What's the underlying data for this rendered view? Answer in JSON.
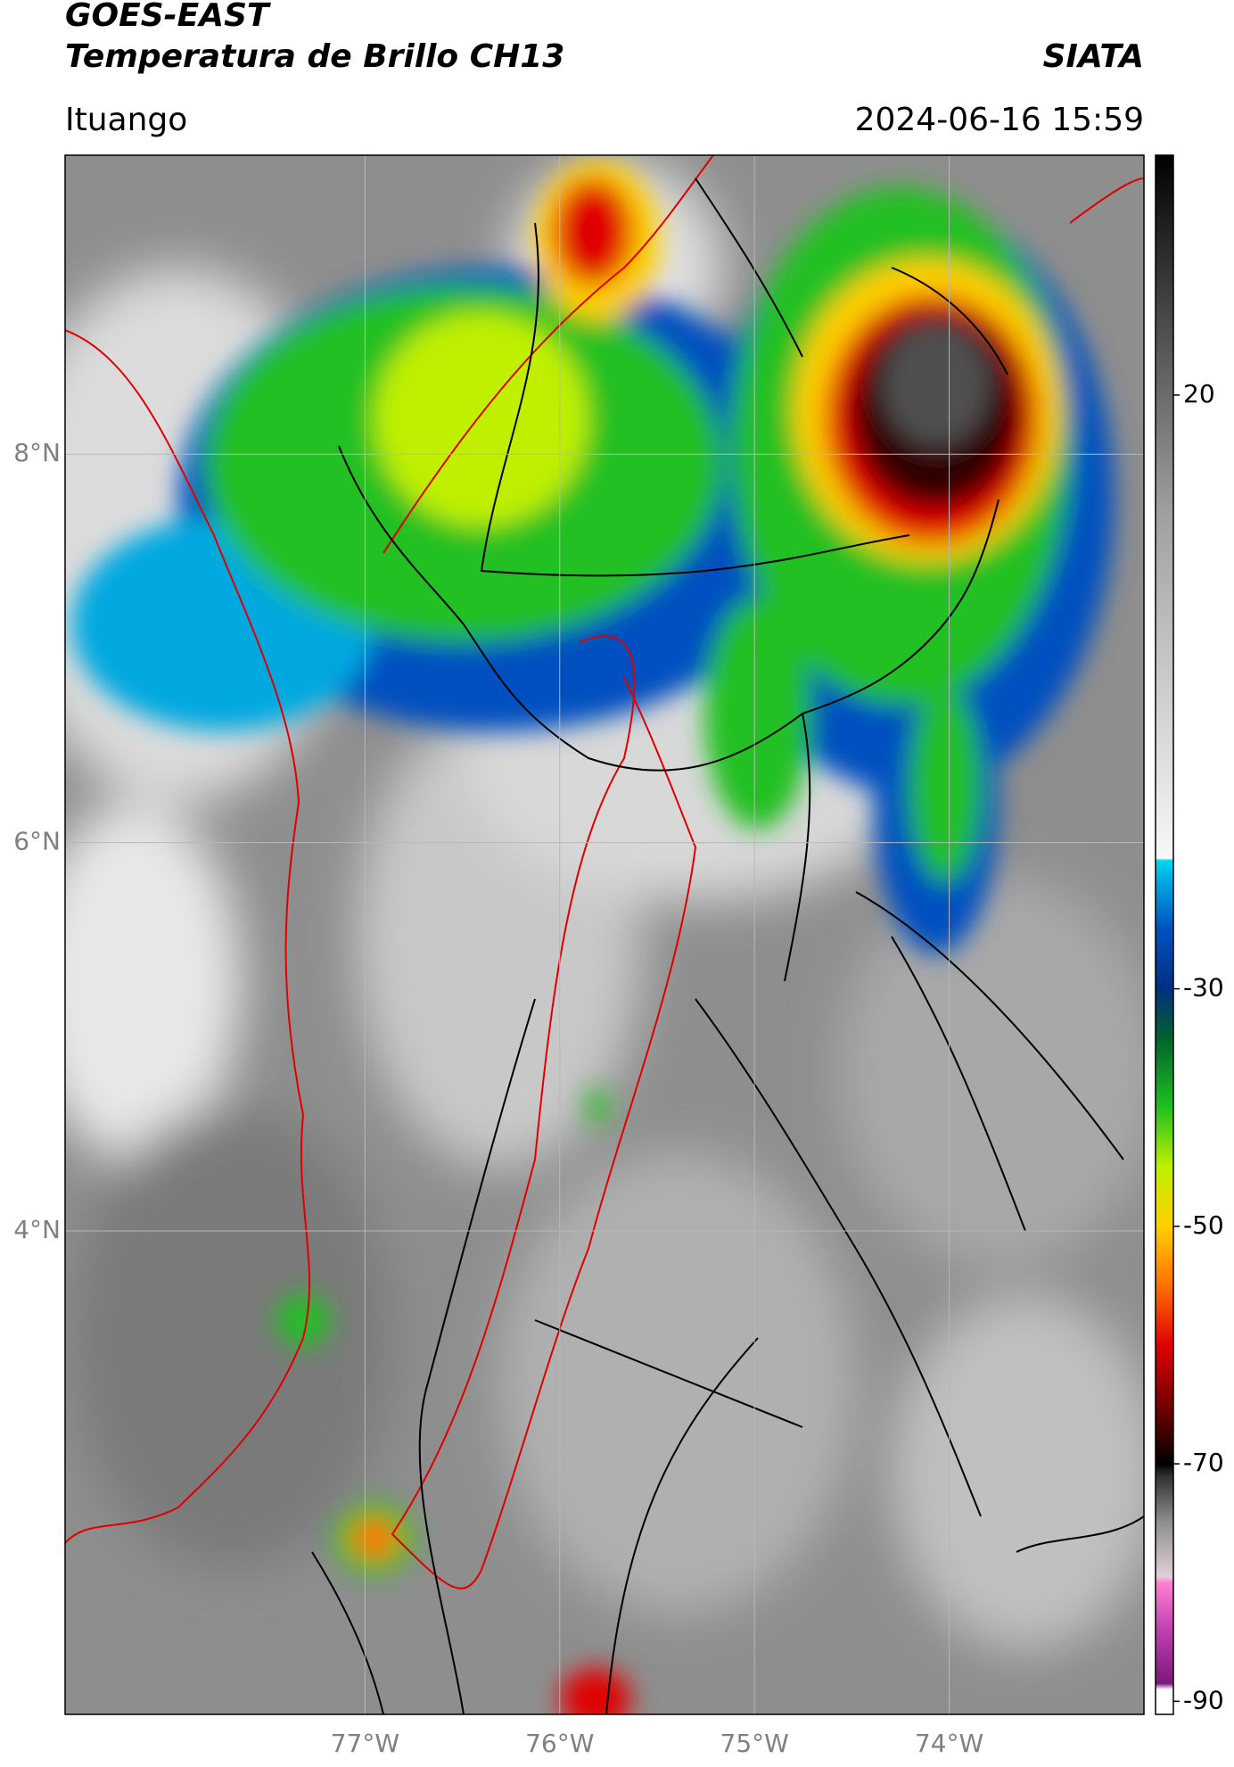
{
  "chart_data": {
    "type": "map",
    "title": "GOES-EAST",
    "subtitle": "Temperatura de Brillo CH13",
    "source": "SIATA",
    "location": "Ituango",
    "timestamp": "2024-06-16 15:59",
    "xlim": [
      -78.54,
      -73.0
    ],
    "ylim": [
      1.51,
      9.54
    ],
    "xticks": [
      {
        "value": -77,
        "label": "77°W"
      },
      {
        "value": -76,
        "label": "76°W"
      },
      {
        "value": -75,
        "label": "75°W"
      },
      {
        "value": -74,
        "label": "74°W"
      }
    ],
    "yticks": [
      {
        "value": 8,
        "label": "8°N"
      },
      {
        "value": 6,
        "label": "6°N"
      },
      {
        "value": 4,
        "label": "4°N"
      }
    ],
    "grid": true,
    "clim": [
      -91.1,
      40.2
    ],
    "cticks": [
      20,
      -30,
      -50,
      -70,
      -90
    ],
    "colormap": [
      {
        "value": -91.1,
        "color": "#ffffff"
      },
      {
        "value": -89,
        "color": "#ffffff"
      },
      {
        "value": -88.5,
        "color": "#7a1a7a"
      },
      {
        "value": -84,
        "color": "#c040b0"
      },
      {
        "value": -80,
        "color": "#ff80d0"
      },
      {
        "value": -79.5,
        "color": "#e0d0d8"
      },
      {
        "value": -75,
        "color": "#909090"
      },
      {
        "value": -71,
        "color": "#303030"
      },
      {
        "value": -70,
        "color": "#000000"
      },
      {
        "value": -66,
        "color": "#600000"
      },
      {
        "value": -60,
        "color": "#e00000"
      },
      {
        "value": -55,
        "color": "#ff7000"
      },
      {
        "value": -50,
        "color": "#ffd000"
      },
      {
        "value": -45,
        "color": "#c0f000"
      },
      {
        "value": -40,
        "color": "#20c020"
      },
      {
        "value": -34,
        "color": "#006030"
      },
      {
        "value": -30,
        "color": "#003080"
      },
      {
        "value": -25,
        "color": "#0050c0"
      },
      {
        "value": -21,
        "color": "#00a8e0"
      },
      {
        "value": -19.2,
        "color": "#00d8f0"
      },
      {
        "value": -19,
        "color": "#f8f8f8"
      },
      {
        "value": 10,
        "color": "#a0a0a0"
      },
      {
        "value": 40.2,
        "color": "#000000"
      }
    ]
  }
}
